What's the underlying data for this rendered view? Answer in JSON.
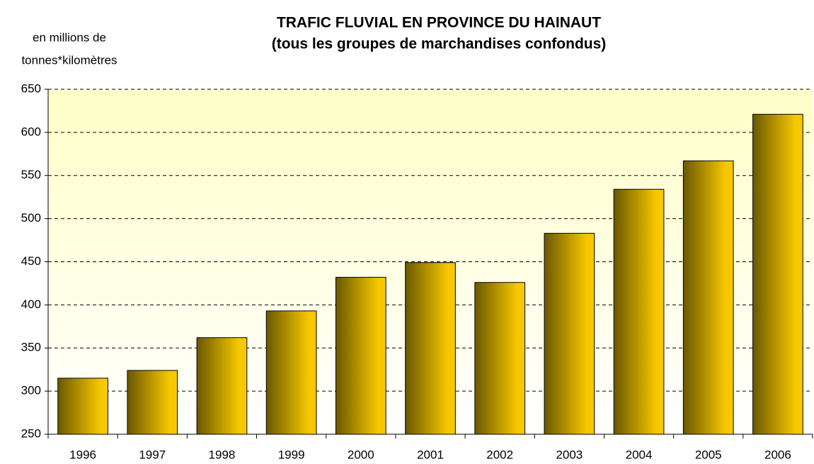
{
  "chart_data": {
    "type": "bar",
    "title": [
      "TRAFIC FLUVIAL EN PROVINCE DU HAINAUT",
      "(tous les groupes de marchandises confondus)"
    ],
    "y_axis_label": [
      "en millions de",
      "tonnes*kilomètres"
    ],
    "categories": [
      "1996",
      "1997",
      "1998",
      "1999",
      "2000",
      "2001",
      "2002",
      "2003",
      "2004",
      "2005",
      "2006"
    ],
    "values": [
      315,
      324,
      362,
      393,
      432,
      449,
      426,
      483,
      534,
      567,
      621
    ],
    "color": "#f7c800",
    "shade_color": "#6a5800",
    "ylim": [
      250,
      650
    ],
    "yticks": [
      250,
      300,
      350,
      400,
      450,
      500,
      550,
      600,
      650
    ],
    "grid": true
  }
}
